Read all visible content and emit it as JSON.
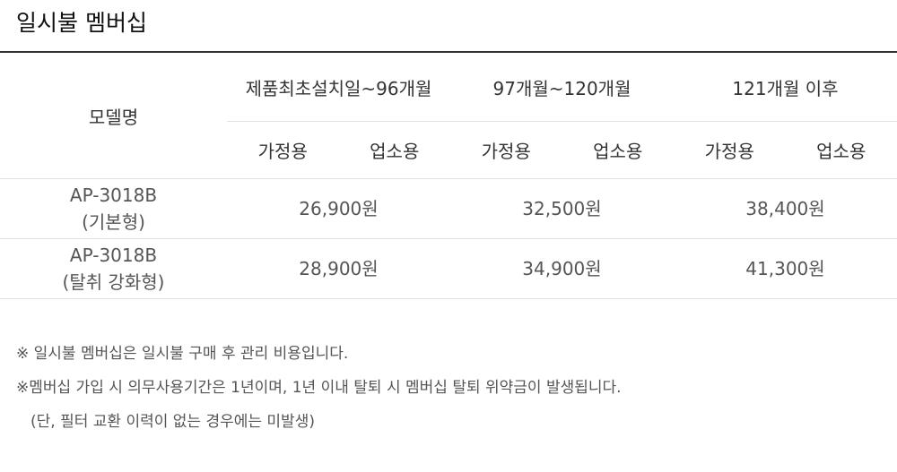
{
  "title": "일시불 멤버십",
  "table": {
    "model_header": "모델명",
    "periods": [
      "제품최초설치일~96개월",
      "97개월~120개월",
      "121개월 이후"
    ],
    "subheaders": [
      "가정용",
      "업소용"
    ],
    "rows": [
      {
        "model": "AP-3018B",
        "variant": "(기본형)",
        "prices": [
          "26,900원",
          "32,500원",
          "38,400원"
        ]
      },
      {
        "model": "AP-3018B",
        "variant": "(탈취 강화형)",
        "prices": [
          "28,900원",
          "34,900원",
          "41,300원"
        ]
      }
    ]
  },
  "notes": [
    "※ 일시불 멤버십은 일시불 구매 후 관리 비용입니다.",
    "※멤버십 가입 시 의무사용기간은 1년이며, 1년 이내 탈퇴 시 멤버십 탈퇴 위약금이 발생됩니다.",
    "(단, 필터 교환 이력이 없는 경우에는 미발생)"
  ]
}
